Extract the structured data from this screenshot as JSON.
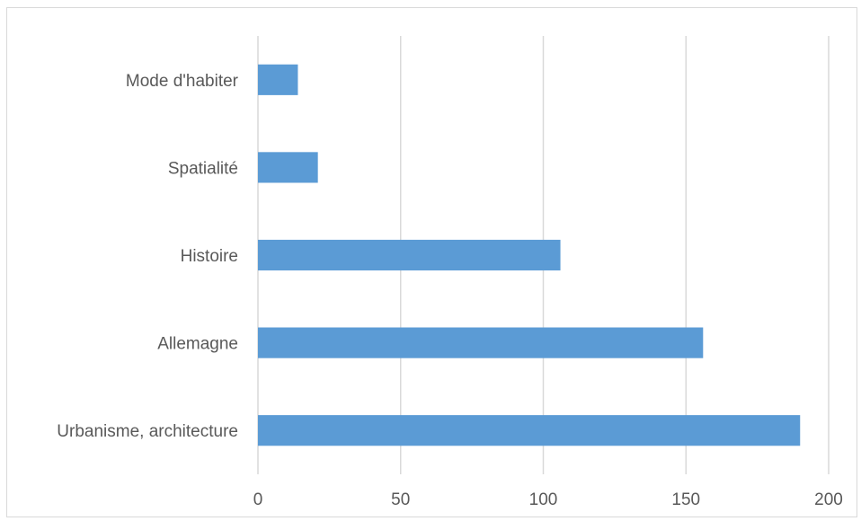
{
  "chart_data": {
    "type": "bar",
    "orientation": "horizontal",
    "categories": [
      "Urbanisme, architecture",
      "Allemagne",
      "Histoire",
      "Spatialité",
      "Mode d'habiter"
    ],
    "values": [
      190,
      156,
      106,
      21,
      14
    ],
    "xlim": [
      0,
      200
    ],
    "xticks": [
      0,
      50,
      100,
      150,
      200
    ],
    "grid": true,
    "legend": "none",
    "title": "",
    "xlabel": "",
    "ylabel": "",
    "colors": {
      "bar": "#5b9bd5",
      "grid": "#d9d9d9",
      "text": "#595959"
    }
  }
}
